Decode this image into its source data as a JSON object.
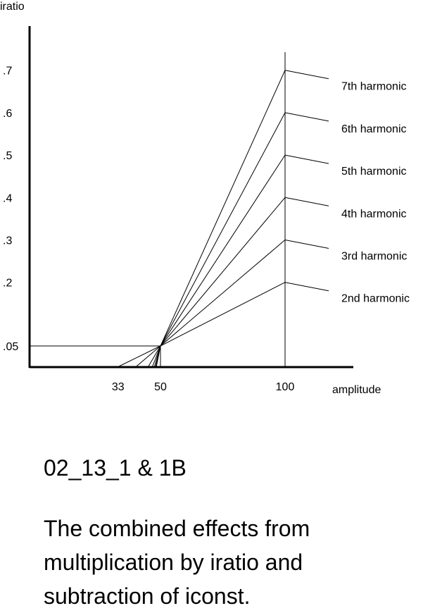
{
  "chart_data": {
    "type": "line",
    "ylabel": "iratio",
    "xlabel": "amplitude",
    "x_ticks": [
      "33",
      "50",
      "100"
    ],
    "y_ticks": [
      ".7",
      ".6",
      ".5",
      ".4",
      ".3",
      ".2",
      ".05"
    ],
    "series": [
      {
        "name": "2nd harmonic",
        "points": [
          [
            40,
            0.0
          ],
          [
            50,
            0.05
          ],
          [
            100,
            0.2
          ]
        ]
      },
      {
        "name": "3rd harmonic",
        "points": [
          [
            45,
            0.0
          ],
          [
            50,
            0.05
          ],
          [
            100,
            0.3
          ]
        ]
      },
      {
        "name": "4th harmonic",
        "points": [
          [
            46.7,
            0.0
          ],
          [
            50,
            0.05
          ],
          [
            100,
            0.4
          ]
        ]
      },
      {
        "name": "5th harmonic",
        "points": [
          [
            47.5,
            0.0
          ],
          [
            50,
            0.05
          ],
          [
            100,
            0.5
          ]
        ]
      },
      {
        "name": "6th harmonic",
        "points": [
          [
            48,
            0.0
          ],
          [
            50,
            0.05
          ],
          [
            100,
            0.6
          ]
        ]
      },
      {
        "name": "7th harmonic",
        "points": [
          [
            48.3,
            0.0
          ],
          [
            50,
            0.05
          ],
          [
            100,
            0.7
          ]
        ]
      }
    ],
    "reference_lines": [
      {
        "axis": "y",
        "value": 0.05,
        "from_x": 0,
        "to_x": 50
      },
      {
        "axis": "x",
        "value": 50,
        "from_y": 0,
        "to_y": 0.05
      },
      {
        "axis": "x",
        "value": 100,
        "from_y": 0,
        "to_y": 0.7
      },
      {
        "from": [
          33,
          0.0
        ],
        "to": [
          50,
          0.05
        ]
      }
    ],
    "grid": false,
    "legend": "right"
  },
  "figure": {
    "id": "02_13_1 & 1B",
    "caption": "The combined effects from multiplication by iratio and subtraction of iconst."
  }
}
